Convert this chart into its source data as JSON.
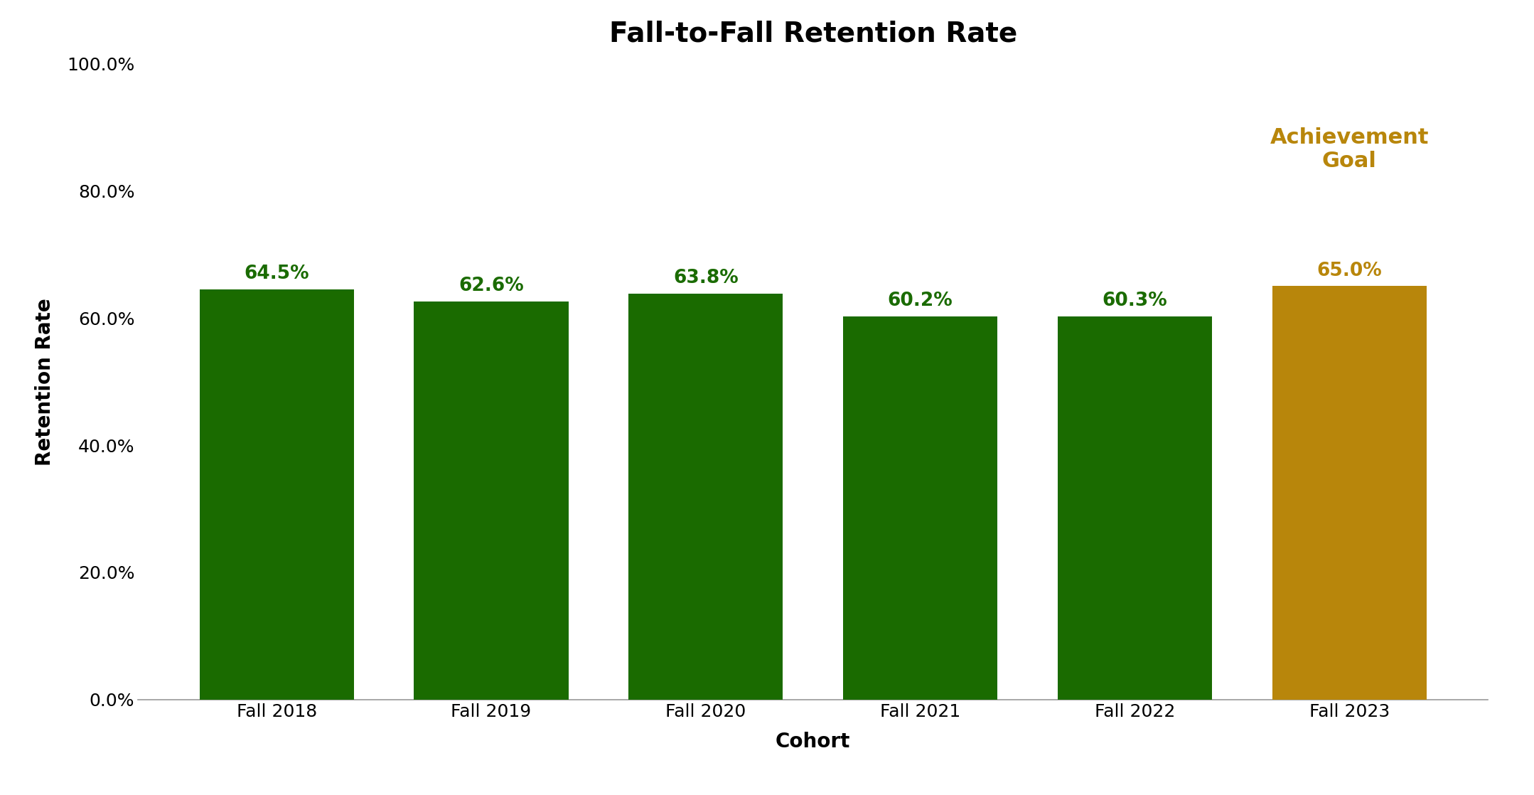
{
  "title": "Fall-to-Fall Retention Rate",
  "xlabel": "Cohort",
  "ylabel": "Retention Rate",
  "categories": [
    "Fall 2018",
    "Fall 2019",
    "Fall 2020",
    "Fall 2021",
    "Fall 2022",
    "Fall 2023"
  ],
  "values": [
    0.645,
    0.626,
    0.638,
    0.602,
    0.603,
    0.65
  ],
  "bar_colors": [
    "#1a6b00",
    "#1a6b00",
    "#1a6b00",
    "#1a6b00",
    "#1a6b00",
    "#b8860b"
  ],
  "label_colors": [
    "#1a6b00",
    "#1a6b00",
    "#1a6b00",
    "#1a6b00",
    "#1a6b00",
    "#b8860b"
  ],
  "value_labels": [
    "64.5%",
    "62.6%",
    "63.8%",
    "60.2%",
    "60.3%",
    "65.0%"
  ],
  "ylim_max": 1.0,
  "yticks": [
    0.0,
    0.2,
    0.4,
    0.6,
    0.8,
    1.0
  ],
  "ytick_labels": [
    "0.0%",
    "20.0%",
    "40.0%",
    "60.0%",
    "80.0%",
    "100.0%"
  ],
  "achievement_line1": "Achievement",
  "achievement_line2": "Goal",
  "achievement_color": "#b8860b",
  "background_color": "#ffffff",
  "title_fontsize": 28,
  "axis_label_fontsize": 20,
  "tick_fontsize": 18,
  "value_label_fontsize": 19,
  "achievement_fontsize": 22,
  "bar_width": 0.72,
  "spine_color": "#999999"
}
